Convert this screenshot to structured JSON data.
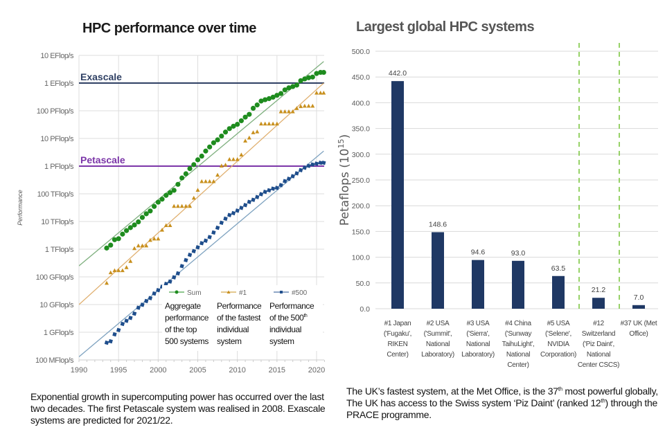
{
  "left_title": "HPC performance over time",
  "right_title": "Largest global HPC systems",
  "left_caption": "Exponential growth in supercomputing power has occurred over the last two decades. The first Petascale system was realised in 2008. Exascale systems are predicted for 2021/22.",
  "right_caption": {
    "part1": "The UK’s fastest system, at the Met Office, is the 37",
    "sup1": "th",
    "part2": " most powerful globally, The UK has access to the Swiss system ‘Piz Daint’ (ranked 12",
    "sup2": "th",
    "part3": ") through the PRACE programme."
  },
  "colors": {
    "sum": "#1e8c1e",
    "first": "#c8901e",
    "last": "#1f4e8c",
    "exascale": "#2e3f63",
    "petascale": "#7b35a8",
    "bar": "#1f3864",
    "divider": "#7dc742"
  },
  "chart_data": [
    {
      "type": "scatter",
      "title": "HPC performance over time",
      "xlabel": "",
      "ylabel": "Performance",
      "xlim": [
        1990,
        2021
      ],
      "x_ticks": [
        "1990",
        "1995",
        "2000",
        "2005",
        "2010",
        "2015",
        "2020"
      ],
      "y_scale": "log",
      "ylim_gflops": [
        0.1,
        10000000000
      ],
      "y_ticks": [
        "100 MFlop/s",
        "1 GFlop/s",
        "10 GFlop/s",
        "100 GFlop/s",
        "1 TFlop/s",
        "10 TFlop/s",
        "100 TFlop/s",
        "1 PFlop/s",
        "10 PFlop/s",
        "100 PFlop/s",
        "1 EFlop/s",
        "10 EFlop/s"
      ],
      "reference_lines": [
        {
          "label": "Exascale",
          "value_gflops": 1000000000
        },
        {
          "label": "Petascale",
          "value_gflops": 1000000
        }
      ],
      "legend": {
        "placement": "bottom-right",
        "entries": [
          {
            "name": "Sum",
            "description": "Aggregate performance of the top 500 systems"
          },
          {
            "name": "#1",
            "description": "Performance of the fastest individual system"
          },
          {
            "name": "#500",
            "description_pre": "Performance of the 500",
            "description_sup": "th",
            "description_post": " individual system"
          }
        ]
      },
      "x": [
        1993.5,
        1994,
        1994.5,
        1995,
        1995.5,
        1996,
        1996.5,
        1997,
        1997.5,
        1998,
        1998.5,
        1999,
        1999.5,
        2000,
        2000.5,
        2001,
        2001.5,
        2002,
        2002.5,
        2003,
        2003.5,
        2004,
        2004.5,
        2005,
        2005.5,
        2006,
        2006.5,
        2007,
        2007.5,
        2008,
        2008.5,
        2009,
        2009.5,
        2010,
        2010.5,
        2011,
        2011.5,
        2012,
        2012.5,
        2013,
        2013.5,
        2014,
        2014.5,
        2015,
        2015.5,
        2016,
        2016.5,
        2017,
        2017.5,
        2018,
        2018.5,
        2019,
        2019.5,
        2020,
        2020.5,
        2020.9
      ],
      "series": [
        {
          "name": "Sum",
          "marker": "circle",
          "trend_gflops": [
            [
              1990,
              250
            ],
            [
              2020.9,
              6000000000
            ]
          ],
          "values_gflops": [
            1100,
            1400,
            2200,
            2400,
            3500,
            4700,
            6000,
            7500,
            9700,
            14000,
            19000,
            24000,
            35000,
            50000,
            64000,
            88000,
            110000,
            134000,
            220000,
            375000,
            530000,
            813000,
            1130000,
            1690000,
            2300000,
            3500000,
            4920000,
            6970000,
            8900000,
            12200000,
            17000000,
            22600000,
            27600000,
            32400000,
            43600000,
            58900000,
            74100000,
            123000000,
            162000000,
            224000000,
            250000000,
            274000000,
            309000000,
            361000000,
            420000000,
            566000000,
            672000000,
            749000000,
            845000000,
            1220000000,
            1410000000,
            1560000000,
            1650000000,
            2220000000,
            2430000000,
            2430000000
          ]
        },
        {
          "name": "#1",
          "marker": "triangle",
          "trend_gflops": [
            [
              1990,
              10
            ],
            [
              2020.9,
              1000000000
            ]
          ],
          "values_gflops": [
            59.7,
            143,
            170,
            170,
            170,
            220,
            368,
            1068,
            1338,
            1338,
            1338,
            2121,
            2379,
            2379,
            4938,
            7226,
            7226,
            35860,
            35860,
            35860,
            35860,
            35860,
            70720,
            136800,
            280600,
            280600,
            280600,
            280600,
            478200,
            1026000,
            1105000,
            1759000,
            1759000,
            1759000,
            2566000,
            8162000,
            10510000,
            16320000,
            17590000,
            33860000,
            33860000,
            33860000,
            33860000,
            33860000,
            93010000,
            93010000,
            93010000,
            93010000,
            122300000,
            143500000,
            148600000,
            148600000,
            148600000,
            442010000,
            442010000,
            442010000
          ]
        },
        {
          "name": "#500",
          "marker": "square",
          "trend_gflops": [
            [
              1990,
              0.13
            ],
            [
              2020.9,
              3500000
            ]
          ],
          "values_gflops": [
            0.42,
            0.47,
            0.84,
            1.2,
            2.0,
            2.6,
            3.3,
            4.7,
            7.7,
            9.8,
            13.4,
            17.1,
            25.1,
            33.1,
            43.8,
            55.5,
            67.8,
            96.3,
            134,
            245,
            403,
            625,
            851,
            1166,
            1645,
            2026,
            2736,
            4005,
            5929,
            9000,
            12640,
            17090,
            20050,
            24670,
            31120,
            39090,
            50940,
            60820,
            76500,
            96620,
            117800,
            133700,
            153400,
            164000,
            206300,
            286100,
            348700,
            432200,
            548300,
            715600,
            874800,
            1022000,
            1142000,
            1230000,
            1320000,
            1320000
          ]
        }
      ]
    },
    {
      "type": "bar",
      "title": "Largest global HPC systems",
      "xlabel": "",
      "ylabel": "Petaflops (10",
      "ylabel_sup": "15",
      "ylabel_end": ")",
      "ylim": [
        0,
        500
      ],
      "y_ticks": [
        "0.0",
        "50.0",
        "100.0",
        "150.0",
        "200.0",
        "250.0",
        "300.0",
        "350.0",
        "400.0",
        "450.0",
        "500.0"
      ],
      "grid": true,
      "categories": [
        [
          "#1 Japan",
          "('Fugaku',",
          "RIKEN",
          "Center)"
        ],
        [
          "#2 USA",
          "('Summit',",
          "National",
          "Laboratory)"
        ],
        [
          "#3 USA",
          "('Sierra',",
          "National",
          "Laboratory)"
        ],
        [
          "#4 China",
          "('Sunway",
          "TaihuLight',",
          "National",
          "Center)"
        ],
        [
          "#5 USA",
          "('Selene',",
          "NVIDIA",
          "Corporation)"
        ],
        [
          "#12",
          "Switzerland",
          "('Piz Daint',",
          "National",
          "Center CSCS)"
        ],
        [
          "#37 UK (Met",
          "Office)"
        ]
      ],
      "values": [
        442.0,
        148.6,
        94.6,
        93.0,
        63.5,
        21.2,
        7.0
      ],
      "data_labels": [
        "442.0",
        "148.6",
        "94.6",
        "93.0",
        "63.5",
        "21.2",
        "7.0"
      ],
      "dividers_after_category_index": [
        4,
        5
      ]
    }
  ]
}
